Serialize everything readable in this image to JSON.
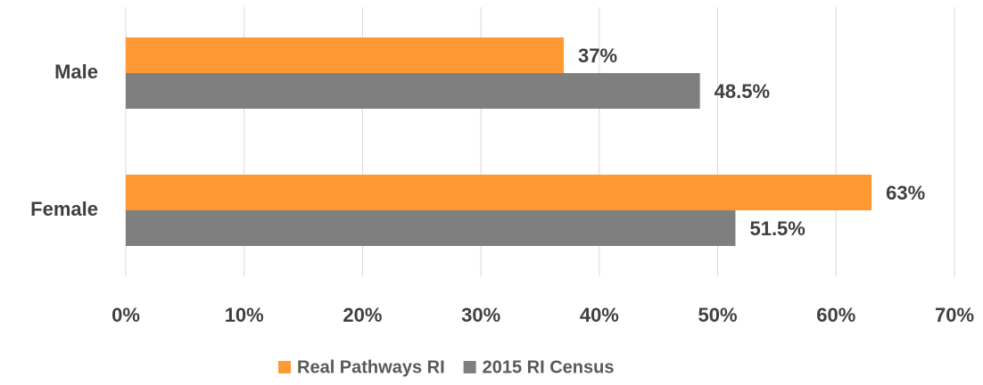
{
  "chart_data": {
    "type": "hbar",
    "categories": [
      "Male",
      "Female"
    ],
    "series": [
      {
        "name": "Real Pathways RI",
        "color": "#ff9933",
        "values": [
          37,
          63
        ],
        "value_labels": [
          "37%",
          "63%"
        ]
      },
      {
        "name": "2015 RI Census",
        "color": "#7f7f7f",
        "values": [
          48.5,
          51.5
        ],
        "value_labels": [
          "48.5%",
          "51.5%"
        ]
      }
    ],
    "xlim": [
      0,
      70
    ],
    "xticks": [
      {
        "value": 0,
        "label": "0%"
      },
      {
        "value": 10,
        "label": "10%"
      },
      {
        "value": 20,
        "label": "20%"
      },
      {
        "value": 30,
        "label": "30%"
      },
      {
        "value": 40,
        "label": "40%"
      },
      {
        "value": 50,
        "label": "50%"
      },
      {
        "value": 60,
        "label": "60%"
      },
      {
        "value": 70,
        "label": "70%"
      }
    ],
    "grid": true,
    "legend": "bottom"
  }
}
